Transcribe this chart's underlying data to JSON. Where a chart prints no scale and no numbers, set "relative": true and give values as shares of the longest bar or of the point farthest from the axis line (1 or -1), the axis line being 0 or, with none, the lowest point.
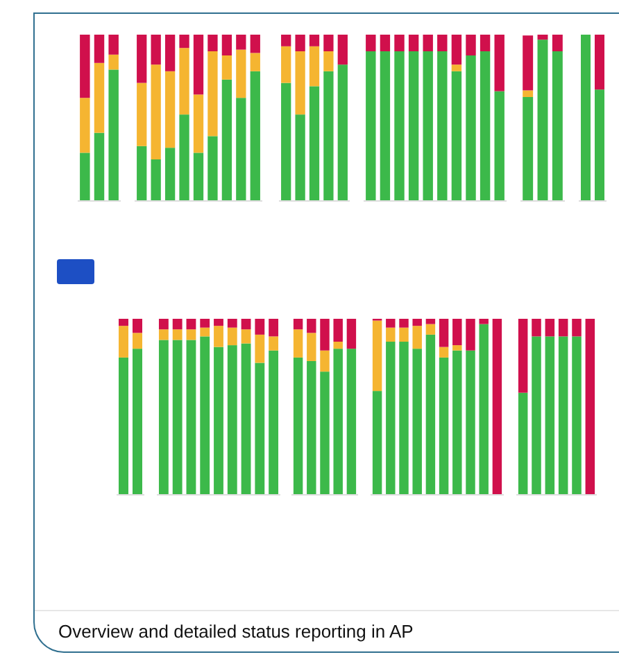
{
  "chart_data": [
    {
      "type": "bar",
      "stacked": true,
      "relative": true,
      "categories": [
        null,
        null,
        null
      ],
      "series": [
        {
          "color": "#3cb94a",
          "values": [
            0.29,
            0.41,
            0.79
          ]
        },
        {
          "color": "#f5b531",
          "values": [
            0.33,
            0.42,
            0.09
          ]
        },
        {
          "color": "#d0104c",
          "values": [
            0.38,
            0.17,
            0.12
          ]
        }
      ]
    },
    {
      "type": "bar",
      "stacked": true,
      "relative": true,
      "categories": [
        null,
        null,
        null,
        null,
        null,
        null,
        null,
        null,
        null
      ],
      "series": [
        {
          "color": "#3cb94a",
          "values": [
            0.33,
            0.25,
            0.32,
            0.52,
            0.29,
            0.39,
            0.73,
            0.62,
            0.78
          ]
        },
        {
          "color": "#f5b531",
          "values": [
            0.38,
            0.57,
            0.46,
            0.4,
            0.35,
            0.51,
            0.145,
            0.29,
            0.11
          ]
        },
        {
          "color": "#d0104c",
          "values": [
            0.29,
            0.18,
            0.22,
            0.08,
            0.36,
            0.1,
            0.125,
            0.09,
            0.11
          ]
        }
      ]
    },
    {
      "type": "bar",
      "stacked": true,
      "relative": true,
      "categories": [
        null,
        null,
        null,
        null,
        null
      ],
      "series": [
        {
          "color": "#3cb94a",
          "values": [
            0.71,
            0.52,
            0.69,
            0.78,
            0.82
          ]
        },
        {
          "color": "#f5b531",
          "values": [
            0.22,
            0.38,
            0.24,
            0.12,
            0
          ]
        },
        {
          "color": "#d0104c",
          "values": [
            0.07,
            0.1,
            0.07,
            0.1,
            0.18
          ]
        }
      ]
    },
    {
      "type": "bar",
      "stacked": true,
      "relative": true,
      "categories": [
        null,
        null,
        null,
        null,
        null,
        null,
        null,
        null,
        null,
        null
      ],
      "series": [
        {
          "color": "#3cb94a",
          "values": [
            0.9,
            0.9,
            0.9,
            0.9,
            0.9,
            0.9,
            0.78,
            0.875,
            0.9,
            0.66
          ]
        },
        {
          "color": "#f5b531",
          "values": [
            0,
            0,
            0,
            0,
            0,
            0,
            0.04,
            0,
            0,
            0
          ]
        },
        {
          "color": "#d0104c",
          "values": [
            0.1,
            0.1,
            0.1,
            0.1,
            0.1,
            0.1,
            0.18,
            0.125,
            0.1,
            0.34
          ]
        }
      ]
    },
    {
      "type": "bar",
      "stacked": true,
      "relative": true,
      "categories": [
        null,
        null,
        null
      ],
      "series": [
        {
          "color": "#3cb94a",
          "values": [
            0.625,
            0.97,
            0.9
          ]
        },
        {
          "color": "#f5b531",
          "values": [
            0.04,
            0,
            0
          ]
        },
        {
          "color": "#d0104c",
          "values": [
            0.33,
            0.03,
            0.1
          ]
        }
      ]
    },
    {
      "type": "bar",
      "stacked": true,
      "relative": true,
      "categories": [
        null,
        null
      ],
      "series": [
        {
          "color": "#3cb94a",
          "values": [
            1,
            0.67
          ]
        },
        {
          "color": "#d0104c",
          "values": [
            0,
            0.33
          ]
        }
      ]
    },
    {
      "type": "bar",
      "stacked": true,
      "relative": true,
      "categories": [
        null,
        null
      ],
      "series": [
        {
          "color": "#3cb94a",
          "values": [
            0.78,
            0.83
          ]
        },
        {
          "color": "#f5b531",
          "values": [
            0.18,
            0.09
          ]
        },
        {
          "color": "#d0104c",
          "values": [
            0.04,
            0.08
          ]
        }
      ]
    },
    {
      "type": "bar",
      "stacked": true,
      "relative": true,
      "categories": [
        null,
        null,
        null,
        null,
        null,
        null,
        null,
        null,
        null
      ],
      "series": [
        {
          "color": "#3cb94a",
          "values": [
            0.88,
            0.88,
            0.88,
            0.9,
            0.84,
            0.85,
            0.86,
            0.75,
            0.82
          ]
        },
        {
          "color": "#f5b531",
          "values": [
            0.06,
            0.06,
            0.06,
            0.05,
            0.12,
            0.1,
            0.08,
            0.16,
            0.08
          ]
        },
        {
          "color": "#d0104c",
          "values": [
            0.06,
            0.06,
            0.06,
            0.05,
            0.04,
            0.05,
            0.06,
            0.09,
            0.1
          ]
        }
      ]
    },
    {
      "type": "bar",
      "stacked": true,
      "relative": true,
      "categories": [
        null,
        null,
        null,
        null,
        null
      ],
      "series": [
        {
          "color": "#3cb94a",
          "values": [
            0.78,
            0.76,
            0.7,
            0.83,
            0.83
          ]
        },
        {
          "color": "#f5b531",
          "values": [
            0.16,
            0.16,
            0.12,
            0.04,
            0
          ]
        },
        {
          "color": "#d0104c",
          "values": [
            0.06,
            0.08,
            0.18,
            0.13,
            0.17
          ]
        }
      ]
    },
    {
      "type": "bar",
      "stacked": true,
      "relative": true,
      "categories": [
        null,
        null,
        null,
        null,
        null,
        null,
        null,
        null,
        null,
        null
      ],
      "series": [
        {
          "color": "#3cb94a",
          "values": [
            0.59,
            0.87,
            0.87,
            0.83,
            0.91,
            0.78,
            0.82,
            0.82,
            0.97,
            0
          ]
        },
        {
          "color": "#f5b531",
          "values": [
            0.4,
            0.08,
            0.08,
            0.13,
            0.06,
            0.06,
            0.03,
            0,
            0,
            0
          ]
        },
        {
          "color": "#d0104c",
          "values": [
            0.01,
            0.05,
            0.05,
            0.04,
            0.03,
            0.16,
            0.15,
            0.18,
            0.03,
            1
          ]
        }
      ]
    },
    {
      "type": "bar",
      "stacked": true,
      "relative": true,
      "categories": [
        null,
        null,
        null,
        null,
        null,
        null
      ],
      "series": [
        {
          "color": "#3cb94a",
          "values": [
            0.58,
            0.9,
            0.9,
            0.9,
            0.9,
            0
          ]
        },
        {
          "color": "#d0104c",
          "values": [
            0.42,
            0.1,
            0.1,
            0.1,
            0.1,
            1
          ]
        }
      ],
      "annotations": [
        "Overview and detailed status reporting in AP"
      ]
    }
  ]
}
